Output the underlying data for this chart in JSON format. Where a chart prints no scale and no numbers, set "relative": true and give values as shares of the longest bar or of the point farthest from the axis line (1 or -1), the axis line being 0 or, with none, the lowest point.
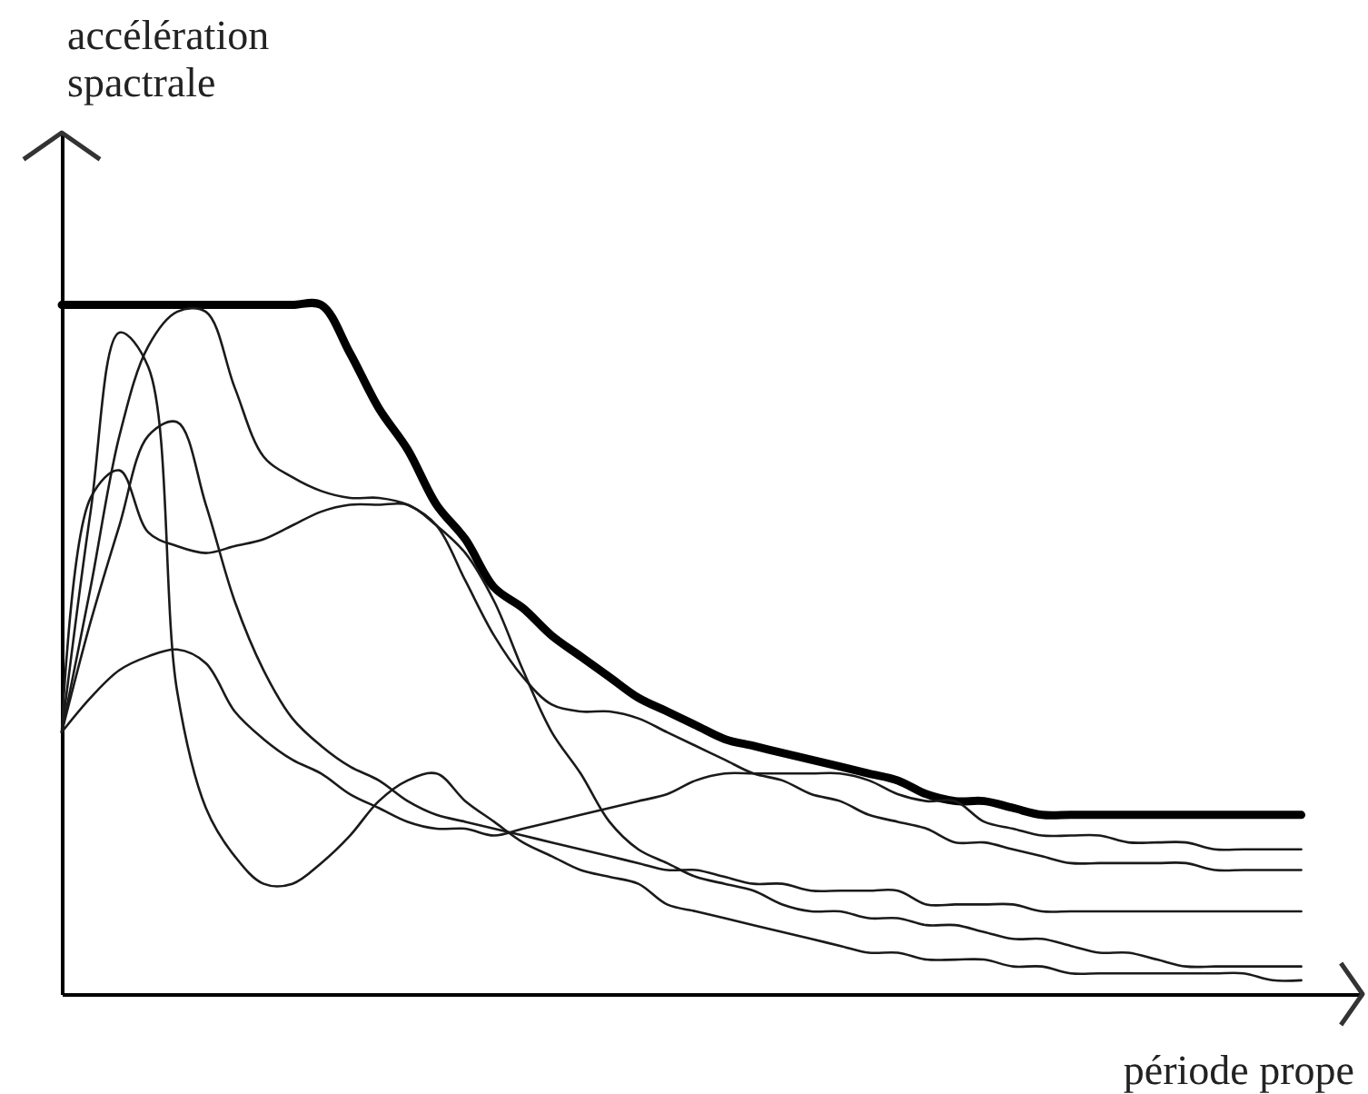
{
  "chart_data": {
    "type": "line",
    "xlabel": "période prope",
    "annotations": [
      "accélération spactrale"
    ],
    "relative": true,
    "categories": [
      null,
      null,
      null,
      null,
      null,
      null,
      null,
      null,
      null,
      null,
      null,
      null,
      null,
      null,
      null,
      null,
      null,
      null,
      null,
      null,
      null,
      null,
      null,
      null,
      null,
      null,
      null,
      null,
      null,
      null,
      null,
      null,
      null,
      null,
      null,
      null,
      null,
      null,
      null,
      null,
      null,
      null,
      null,
      null
    ],
    "series": [
      {
        "color": "#000000",
        "values": [
          1,
          1,
          1,
          1,
          1,
          1,
          1,
          1,
          1,
          1,
          0.93,
          0.85,
          0.79,
          0.71,
          0.66,
          0.59,
          0.56,
          0.52,
          0.49,
          0.46,
          0.43,
          0.41,
          0.39,
          0.37,
          0.36,
          0.35,
          0.34,
          0.33,
          0.32,
          0.31,
          0.29,
          0.28,
          0.28,
          0.27,
          0.26,
          0.26,
          0.26,
          0.26,
          0.26,
          0.26,
          0.26,
          0.26,
          0.26,
          0.26
        ]
      },
      {
        "color": "#1a1a1a",
        "values": [
          0.38,
          0.7,
          0.96,
          0.91,
          0.44,
          0.27,
          0.2,
          0.16,
          0.16,
          0.19,
          0.23,
          0.28,
          0.31,
          0.32,
          0.28,
          0.25,
          0.22,
          0.2,
          0.18,
          0.17,
          0.16,
          0.13,
          0.12,
          0.11,
          0.1,
          0.09,
          0.08,
          0.07,
          0.06,
          0.06,
          0.05,
          0.05,
          0.05,
          0.04,
          0.04,
          0.03,
          0.03,
          0.03,
          0.03,
          0.03,
          0.03,
          0.03,
          0.02,
          0.02
        ]
      },
      {
        "color": "#1a1a1a",
        "values": [
          0.38,
          0.59,
          0.81,
          0.94,
          0.99,
          0.99,
          0.88,
          0.78,
          0.75,
          0.73,
          0.72,
          0.72,
          0.71,
          0.68,
          0.6,
          0.52,
          0.46,
          0.42,
          0.41,
          0.41,
          0.4,
          0.38,
          0.36,
          0.34,
          0.32,
          0.31,
          0.29,
          0.28,
          0.26,
          0.25,
          0.24,
          0.22,
          0.22,
          0.21,
          0.2,
          0.19,
          0.19,
          0.19,
          0.19,
          0.19,
          0.18,
          0.18,
          0.18,
          0.18
        ]
      },
      {
        "color": "#1a1a1a",
        "values": [
          0.38,
          0.72,
          0.76,
          0.67,
          0.65,
          0.64,
          0.65,
          0.66,
          0.68,
          0.7,
          0.71,
          0.71,
          0.71,
          0.68,
          0.64,
          0.57,
          0.47,
          0.38,
          0.32,
          0.25,
          0.21,
          0.19,
          0.17,
          0.16,
          0.15,
          0.13,
          0.12,
          0.12,
          0.11,
          0.11,
          0.1,
          0.1,
          0.09,
          0.08,
          0.08,
          0.07,
          0.06,
          0.06,
          0.05,
          0.04,
          0.04,
          0.04,
          0.04,
          0.04
        ]
      },
      {
        "color": "#1a1a1a",
        "values": [
          0.38,
          0.54,
          0.68,
          0.81,
          0.83,
          0.71,
          0.57,
          0.47,
          0.4,
          0.36,
          0.33,
          0.31,
          0.28,
          0.26,
          0.25,
          0.24,
          0.23,
          0.22,
          0.21,
          0.2,
          0.19,
          0.18,
          0.18,
          0.17,
          0.16,
          0.16,
          0.15,
          0.15,
          0.15,
          0.15,
          0.13,
          0.13,
          0.13,
          0.13,
          0.12,
          0.12,
          0.12,
          0.12,
          0.12,
          0.12,
          0.12,
          0.12,
          0.12,
          0.12
        ]
      },
      {
        "color": "#1a1a1a",
        "values": [
          0.38,
          0.43,
          0.47,
          0.49,
          0.5,
          0.48,
          0.41,
          0.37,
          0.34,
          0.32,
          0.29,
          0.27,
          0.25,
          0.24,
          0.24,
          0.23,
          0.24,
          0.25,
          0.26,
          0.27,
          0.28,
          0.29,
          0.31,
          0.32,
          0.32,
          0.32,
          0.32,
          0.32,
          0.31,
          0.29,
          0.28,
          0.28,
          0.25,
          0.24,
          0.23,
          0.23,
          0.23,
          0.22,
          0.22,
          0.22,
          0.21,
          0.21,
          0.21,
          0.21
        ]
      }
    ]
  }
}
